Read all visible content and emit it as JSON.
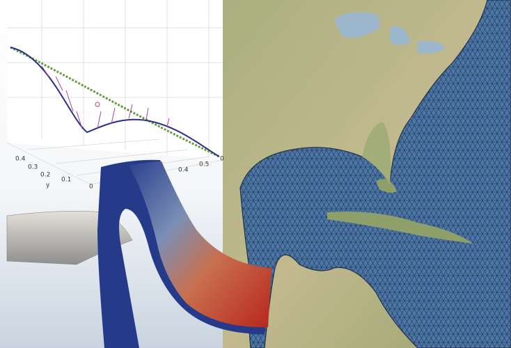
{
  "plot": {
    "axis_label": "y",
    "y_ticks": [
      "0.4",
      "0.3",
      "0.2",
      "0.1",
      "0"
    ],
    "x_ticks": [
      "0.4",
      "0.5",
      "0"
    ]
  }
}
